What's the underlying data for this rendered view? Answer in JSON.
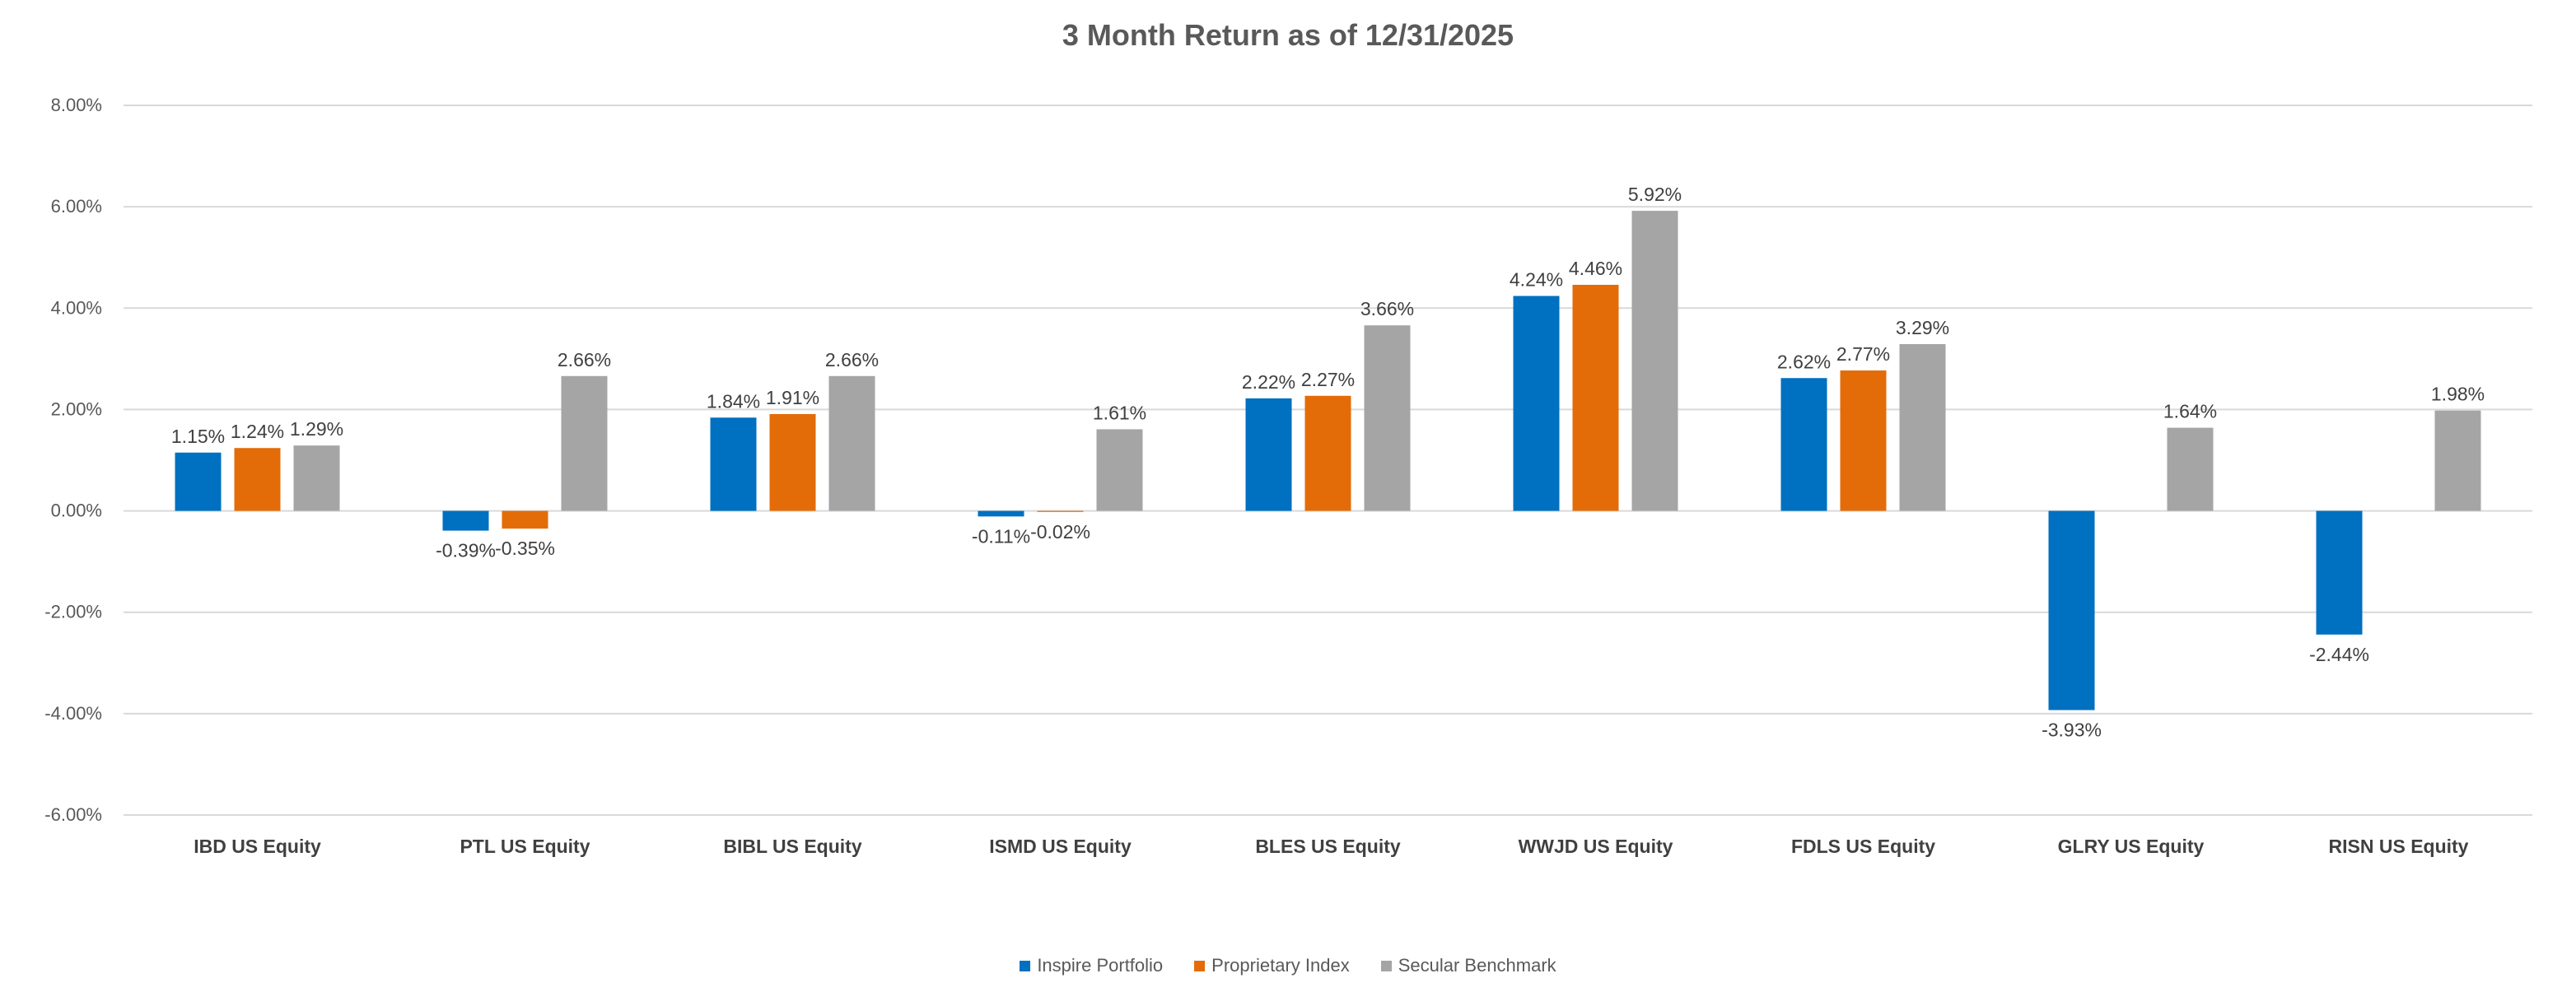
{
  "chart_data": {
    "type": "bar",
    "title": "3 Month Return as of 12/31/2025",
    "xlabel": "",
    "ylabel": "",
    "ylim": [
      -6,
      8
    ],
    "y_ticks": [
      8,
      6,
      4,
      2,
      0,
      -2,
      -4,
      -6
    ],
    "y_tick_labels": [
      "8.00%",
      "6.00%",
      "4.00%",
      "2.00%",
      "0.00%",
      "-2.00%",
      "-4.00%",
      "-6.00%"
    ],
    "grid": true,
    "legend_position": "bottom",
    "categories": [
      "IBD US Equity",
      "PTL US Equity",
      "BIBL US Equity",
      "ISMD US Equity",
      "BLES US Equity",
      "WWJD US Equity",
      "FDLS US Equity",
      "GLRY US Equity",
      "RISN US Equity"
    ],
    "series": [
      {
        "name": "Inspire Portfolio",
        "color": "#0070C0",
        "values": [
          1.15,
          -0.39,
          1.84,
          -0.11,
          2.22,
          4.24,
          2.62,
          -3.93,
          -2.44
        ],
        "labels": [
          "1.15%",
          "-0.39%",
          "1.84%",
          "-0.11%",
          "2.22%",
          "4.24%",
          "2.62%",
          "-3.93%",
          "-2.44%"
        ]
      },
      {
        "name": "Proprietary Index",
        "color": "#E36C09",
        "values": [
          1.24,
          -0.35,
          1.91,
          -0.02,
          2.27,
          4.46,
          2.77,
          null,
          null
        ],
        "labels": [
          "1.24%",
          "-0.35%",
          "1.91%",
          "-0.02%",
          "2.27%",
          "4.46%",
          "2.77%",
          null,
          null
        ]
      },
      {
        "name": "Secular Benchmark",
        "color": "#A5A5A5",
        "values": [
          1.29,
          2.66,
          2.66,
          1.61,
          3.66,
          5.92,
          3.29,
          1.64,
          1.98
        ],
        "labels": [
          "1.29%",
          "2.66%",
          "2.66%",
          "1.61%",
          "3.66%",
          "5.92%",
          "3.29%",
          "1.64%",
          "1.98%"
        ]
      }
    ]
  }
}
